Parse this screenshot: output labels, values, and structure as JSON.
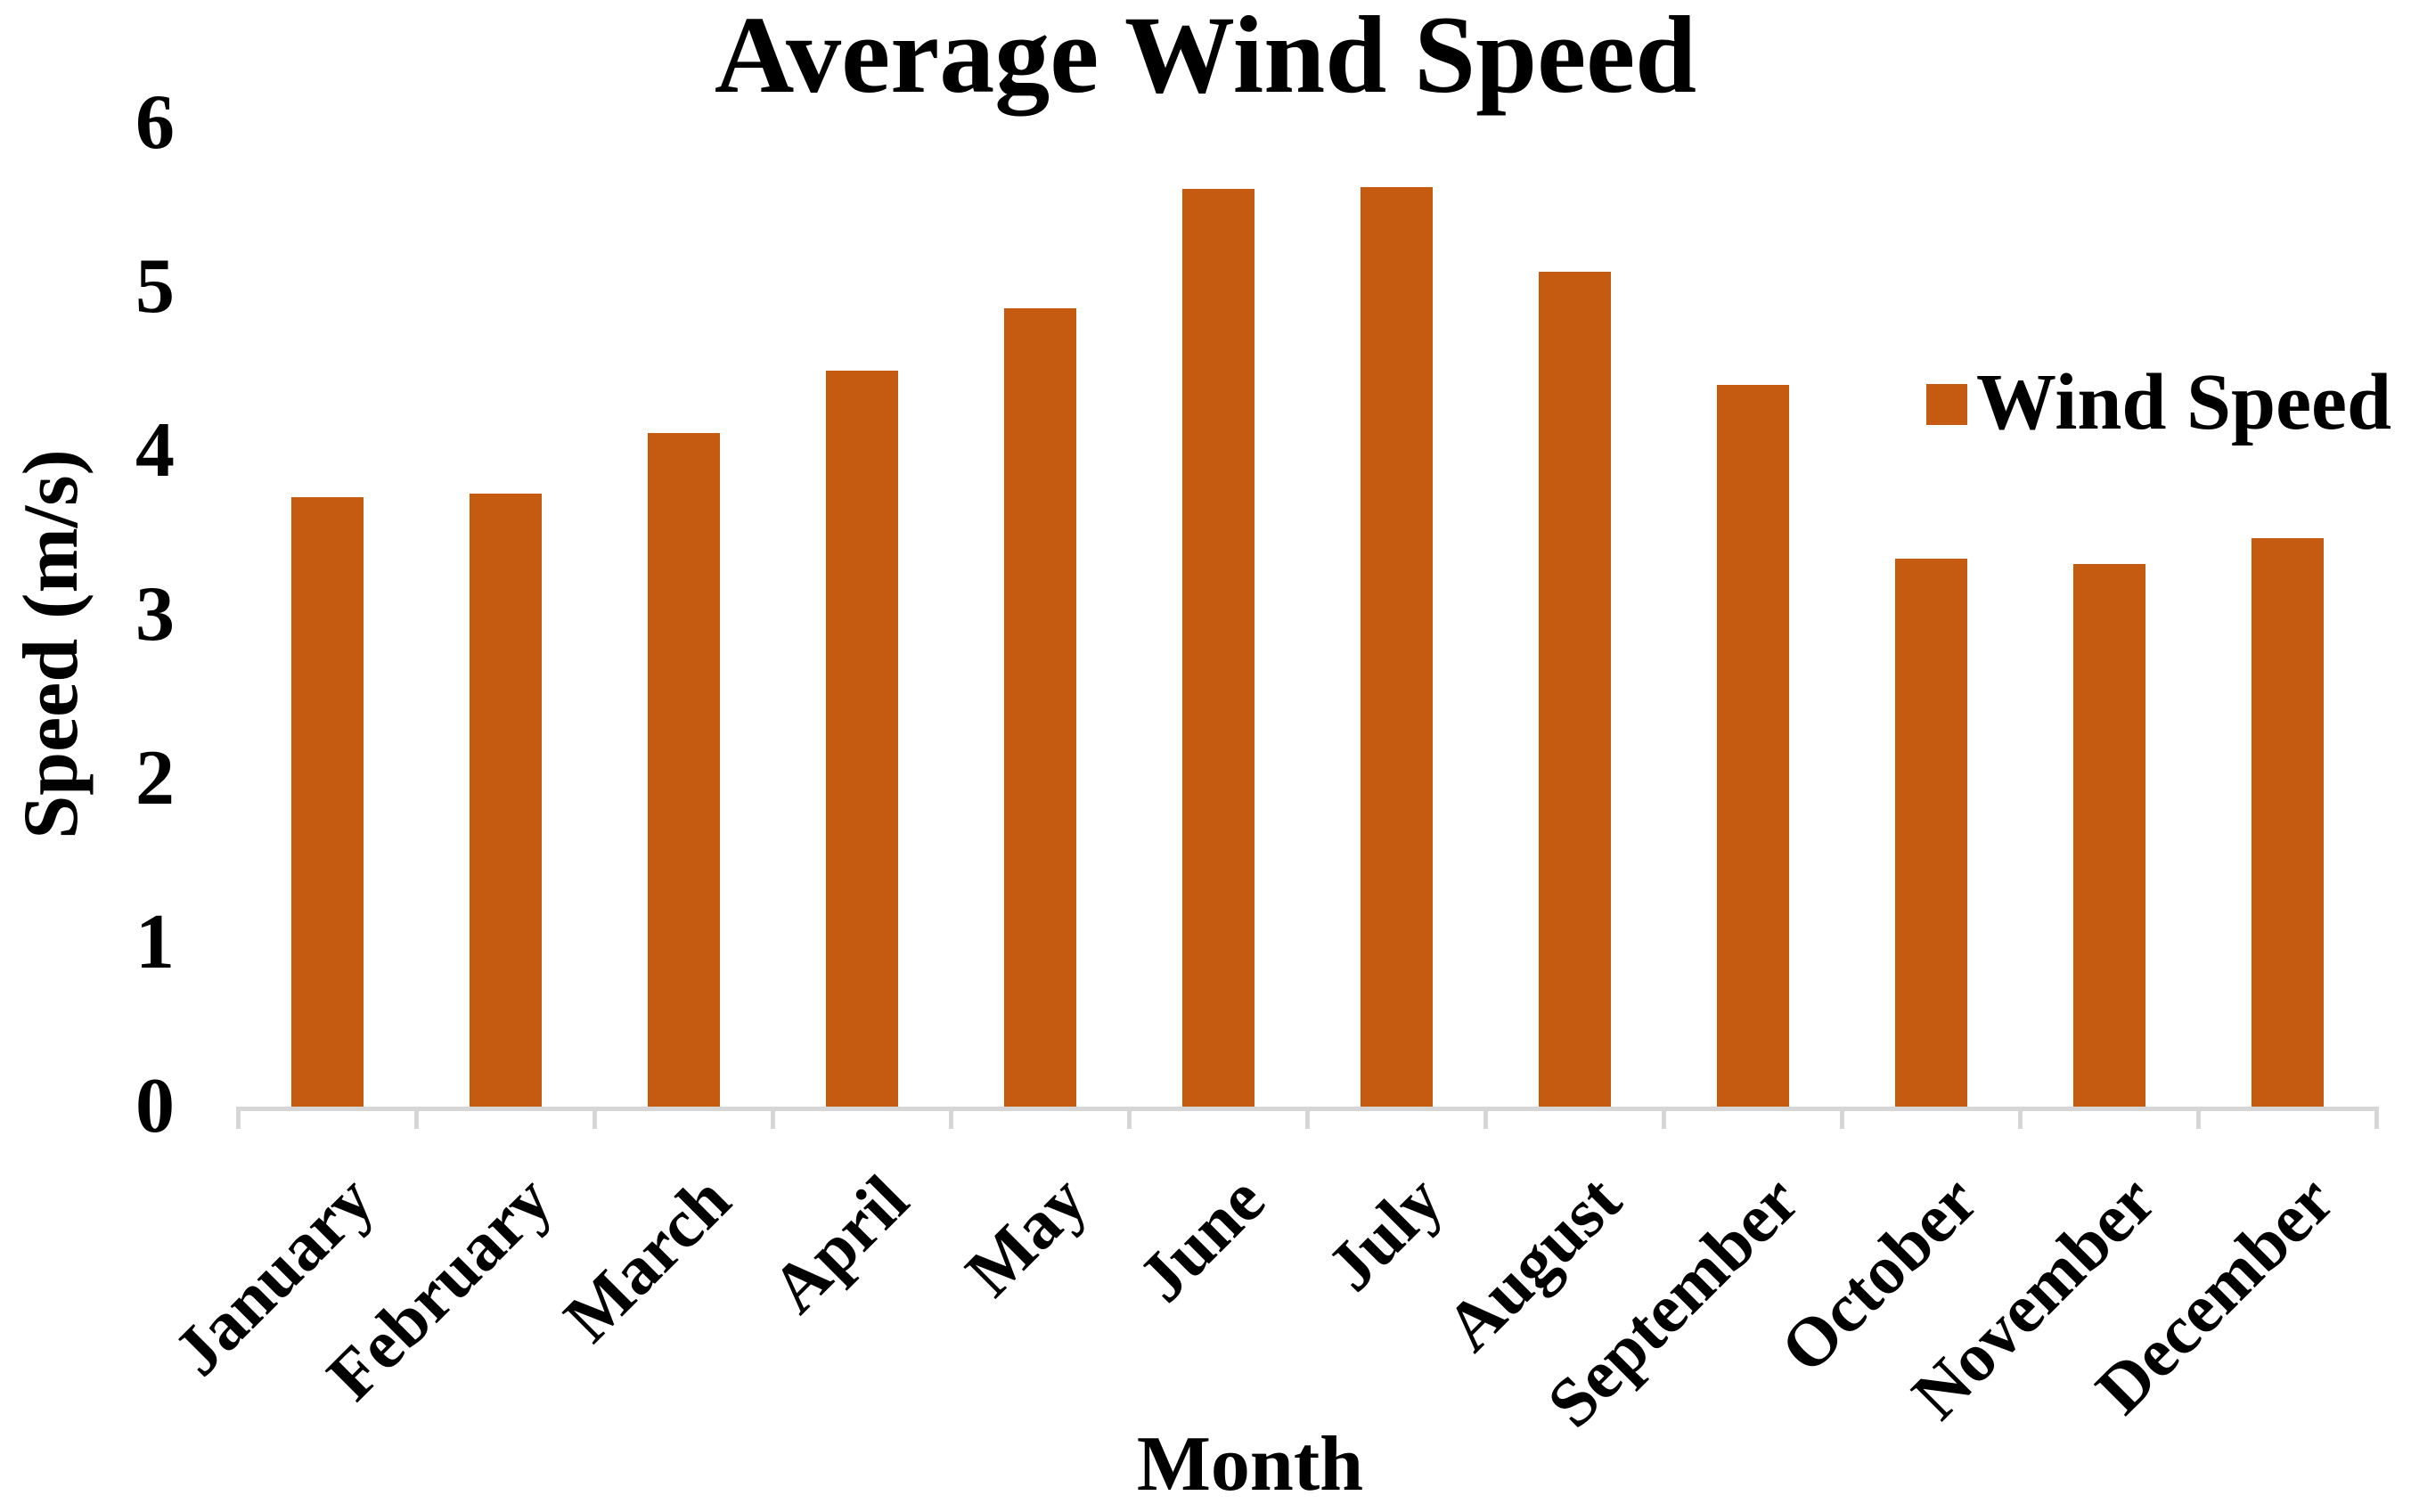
{
  "chart_data": {
    "type": "bar",
    "title": "Average Wind Speed",
    "xlabel": "Month",
    "ylabel": "Speed (m/s)",
    "categories": [
      "January",
      "February",
      "March",
      "April",
      "May",
      "June",
      "July",
      "August",
      "September",
      "October",
      "November",
      "December"
    ],
    "series": [
      {
        "name": "Wind Speed",
        "values": [
          3.72,
          3.74,
          4.11,
          4.49,
          4.87,
          5.6,
          5.61,
          5.09,
          4.4,
          3.34,
          3.31,
          3.47
        ]
      }
    ],
    "ylim": [
      0,
      6
    ],
    "yticks": [
      0,
      1,
      2,
      3,
      4,
      5,
      6
    ],
    "grid": false,
    "legend_position": "right",
    "bar_color": "#C55A11",
    "axis_line_color": "#D6D6D6",
    "text_color": "#000000",
    "background_color": "#FFFFFF"
  }
}
